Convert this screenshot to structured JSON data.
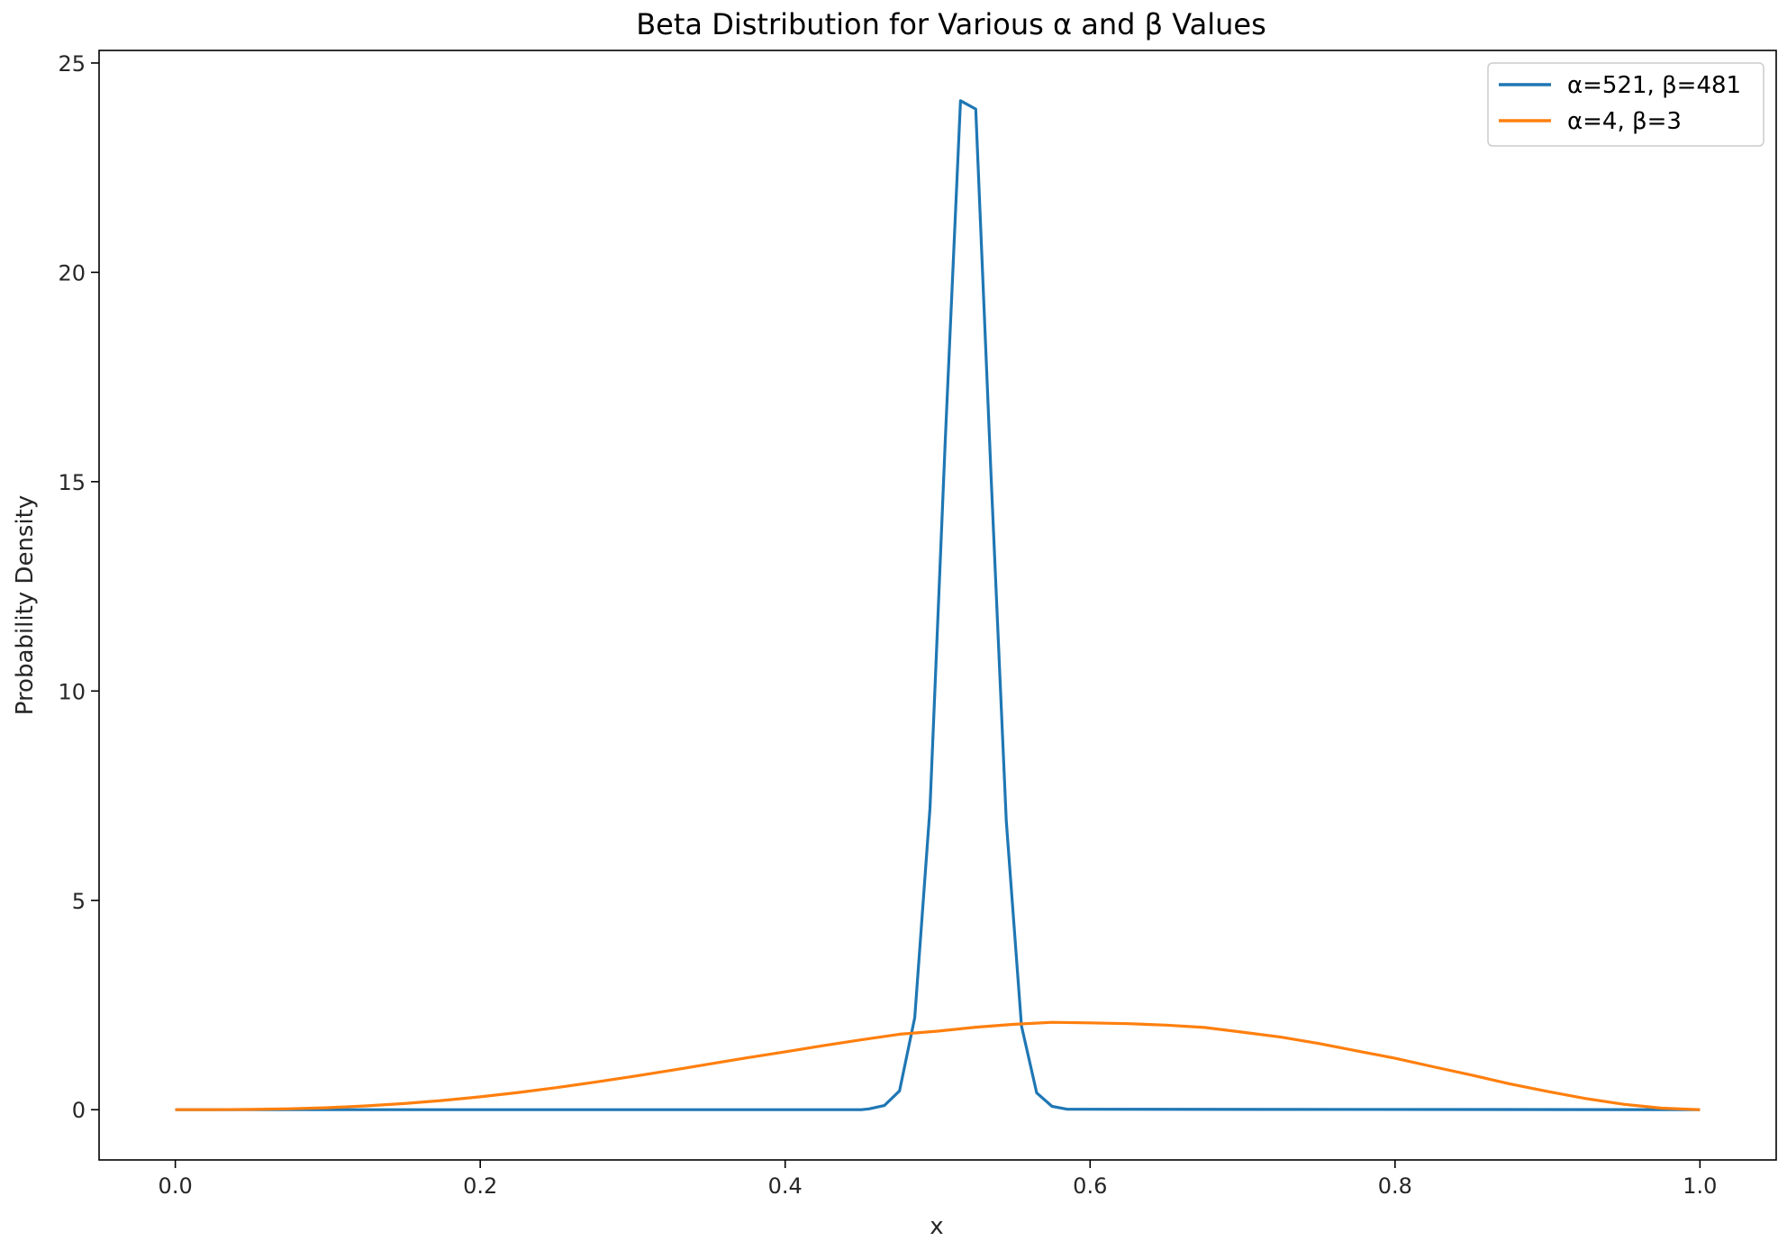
{
  "chart_data": {
    "type": "line",
    "title": "Beta Distribution for Various α and β Values",
    "xlabel": "x",
    "ylabel": "Probability Density",
    "xlim": [
      -0.05,
      1.05
    ],
    "ylim": [
      -1.2,
      25.3
    ],
    "xticks": [
      0.0,
      0.2,
      0.4,
      0.6,
      0.8,
      1.0
    ],
    "xtick_labels": [
      "0.0",
      "0.2",
      "0.4",
      "0.6",
      "0.8",
      "1.0"
    ],
    "yticks": [
      0,
      5,
      10,
      15,
      20,
      25
    ],
    "ytick_labels": [
      "0",
      "5",
      "10",
      "15",
      "20",
      "25"
    ],
    "grid": false,
    "legend_position": "top-right",
    "series": [
      {
        "name": "α=521, β=481",
        "color": "#1f77b4",
        "x": [
          0.0,
          0.45,
          0.455,
          0.465,
          0.475,
          0.485,
          0.495,
          0.505,
          0.515,
          0.525,
          0.535,
          0.545,
          0.555,
          0.565,
          0.575,
          0.585,
          1.0
        ],
        "y": [
          0.0,
          0.0,
          0.02,
          0.1,
          0.45,
          2.2,
          7.2,
          16.0,
          24.1,
          23.9,
          15.2,
          6.9,
          2.0,
          0.4,
          0.08,
          0.01,
          0.0
        ]
      },
      {
        "name": "α=4, β=3",
        "color": "#ff7f0e",
        "x": [
          0.0,
          0.025,
          0.05,
          0.075,
          0.1,
          0.125,
          0.15,
          0.175,
          0.2,
          0.225,
          0.25,
          0.275,
          0.3,
          0.325,
          0.35,
          0.375,
          0.4,
          0.425,
          0.45,
          0.475,
          0.5,
          0.525,
          0.55,
          0.575,
          0.6,
          0.625,
          0.65,
          0.675,
          0.7,
          0.725,
          0.75,
          0.775,
          0.8,
          0.825,
          0.85,
          0.875,
          0.9,
          0.925,
          0.95,
          0.975,
          1.0
        ],
        "y": [
          0.0,
          0.0009,
          0.0068,
          0.0216,
          0.0486,
          0.0897,
          0.1463,
          0.2188,
          0.3072,
          0.4105,
          0.5273,
          0.6557,
          0.7938,
          0.9385,
          1.0877,
          1.2393,
          1.3824,
          1.5291,
          1.6702,
          1.8023,
          1.875,
          1.9706,
          2.0386,
          2.0876,
          2.0736,
          2.0553,
          2.019,
          1.964,
          1.8522,
          1.7346,
          1.582,
          1.4052,
          1.2288,
          1.0265,
          0.829,
          0.6196,
          0.4374,
          0.2659,
          0.1286,
          0.0368,
          0.0
        ]
      }
    ]
  }
}
